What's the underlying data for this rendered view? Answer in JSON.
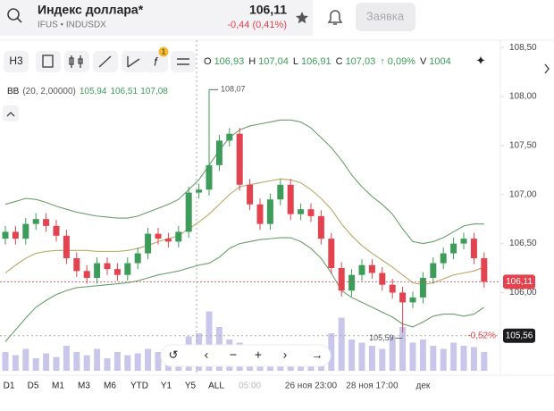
{
  "header": {
    "title": "Индекс доллара*",
    "subtitle": "IFUS • INDUSDX",
    "price": "106,11",
    "change": "-0,44 (0,41%)",
    "button": "Заявка"
  },
  "toolbar": {
    "interval": "Н3",
    "badge": "1"
  },
  "ohlc": {
    "o_label": "O",
    "o": "106,93",
    "h_label": "H",
    "h": "107,04",
    "l_label": "L",
    "l": "106,91",
    "c_label": "C",
    "c": "107,03",
    "change": "↑ 0,09%",
    "v_label": "V",
    "v": "1004"
  },
  "indicator": {
    "name": "BB",
    "params": "(20, 2,00000)",
    "lower": "105,94",
    "middle": "106,51",
    "upper": "107,08"
  },
  "periods": [
    "D1",
    "D5",
    "M1",
    "M3",
    "M6",
    "YTD",
    "Y1",
    "Y5",
    "ALL"
  ],
  "chart_data": {
    "type": "candlestick",
    "categories": [
      null,
      null,
      null,
      null,
      null,
      null,
      null,
      null,
      null,
      null,
      null,
      null,
      null,
      null,
      null,
      null,
      null,
      null,
      null,
      null,
      null,
      null,
      null,
      null,
      "05:00",
      null,
      null,
      null,
      null,
      null,
      "26 ноя 23:00",
      null,
      null,
      null,
      null,
      null,
      "28 ноя 17:00",
      null,
      null,
      null,
      null,
      "дек",
      null,
      null,
      null,
      null,
      null,
      null
    ],
    "open": [
      106.55,
      106.62,
      106.55,
      106.7,
      106.75,
      106.68,
      106.58,
      106.35,
      106.22,
      106.15,
      106.3,
      106.24,
      106.18,
      106.3,
      106.4,
      106.6,
      106.55,
      106.52,
      106.62,
      107.02,
      107.05,
      107.3,
      107.55,
      107.62,
      107.1,
      106.9,
      106.7,
      106.95,
      107.1,
      106.8,
      106.85,
      106.78,
      106.55,
      106.25,
      106.02,
      106.18,
      106.28,
      106.2,
      106.08,
      106.0,
      105.9,
      105.95,
      106.15,
      106.3,
      106.4,
      106.5,
      106.55,
      106.35
    ],
    "high": [
      106.68,
      106.68,
      106.76,
      106.81,
      106.81,
      106.74,
      106.64,
      106.41,
      106.28,
      106.36,
      106.36,
      106.3,
      106.36,
      106.46,
      106.66,
      106.66,
      106.61,
      106.68,
      107.08,
      107.11,
      108.07,
      107.61,
      107.68,
      107.68,
      107.16,
      106.96,
      107.01,
      107.16,
      107.16,
      106.91,
      106.91,
      106.84,
      106.61,
      106.31,
      106.24,
      106.34,
      106.34,
      106.26,
      106.14,
      106.06,
      106.01,
      106.21,
      106.36,
      106.46,
      106.56,
      106.61,
      106.61,
      106.41
    ],
    "low": [
      106.49,
      106.49,
      106.49,
      106.64,
      106.62,
      106.52,
      106.29,
      106.16,
      106.09,
      106.09,
      106.18,
      106.12,
      106.12,
      106.24,
      106.34,
      106.49,
      106.46,
      106.46,
      106.56,
      106.96,
      106.99,
      107.24,
      107.49,
      107.04,
      106.84,
      106.64,
      106.64,
      106.89,
      106.74,
      106.74,
      106.72,
      106.49,
      106.19,
      105.96,
      105.96,
      106.12,
      106.14,
      106.02,
      105.94,
      105.59,
      105.84,
      105.89,
      106.09,
      106.24,
      106.34,
      106.44,
      106.29,
      106.05
    ],
    "close": [
      106.62,
      106.55,
      106.7,
      106.75,
      106.68,
      106.58,
      106.35,
      106.22,
      106.15,
      106.3,
      106.24,
      106.18,
      106.3,
      106.4,
      106.6,
      106.55,
      106.52,
      106.62,
      107.02,
      107.05,
      107.3,
      107.55,
      107.62,
      107.1,
      106.9,
      106.7,
      106.95,
      107.1,
      106.8,
      106.85,
      106.78,
      106.55,
      106.25,
      106.02,
      106.18,
      106.28,
      106.2,
      106.08,
      106.0,
      105.9,
      105.95,
      106.15,
      106.3,
      106.4,
      106.5,
      106.55,
      106.35,
      106.11
    ],
    "bands": [
      {
        "color": "#6a9e6a",
        "values": [
          106.9,
          106.93,
          106.96,
          106.95,
          106.92,
          106.88,
          106.85,
          106.82,
          106.8,
          106.78,
          106.77,
          106.76,
          106.76,
          106.78,
          106.82,
          106.86,
          106.9,
          106.95,
          107.05,
          107.15,
          107.3,
          107.45,
          107.58,
          107.66,
          107.7,
          107.72,
          107.74,
          107.76,
          107.76,
          107.74,
          107.68,
          107.58,
          107.48,
          107.35,
          107.2,
          107.08,
          106.98,
          106.9,
          106.8,
          106.65,
          106.52,
          106.5,
          106.52,
          106.56,
          106.62,
          106.68,
          106.7,
          106.7
        ]
      },
      {
        "color": "#b9a866",
        "values": [
          106.2,
          106.28,
          106.35,
          106.4,
          106.42,
          106.43,
          106.43,
          106.43,
          106.43,
          106.42,
          106.42,
          106.42,
          106.43,
          106.45,
          106.48,
          106.52,
          106.55,
          106.58,
          106.65,
          106.72,
          106.8,
          106.9,
          107.0,
          107.08,
          107.1,
          107.12,
          107.14,
          107.16,
          107.15,
          107.12,
          107.05,
          106.96,
          106.85,
          106.7,
          106.58,
          106.48,
          106.4,
          106.33,
          106.26,
          106.18,
          106.1,
          106.08,
          106.1,
          106.14,
          106.18,
          106.2,
          106.22,
          106.26
        ]
      },
      {
        "color": "#6a9e6a",
        "values": [
          105.5,
          105.62,
          105.74,
          105.85,
          105.92,
          105.98,
          106.02,
          106.05,
          106.06,
          106.07,
          106.08,
          106.09,
          106.1,
          106.12,
          106.15,
          106.18,
          106.2,
          106.22,
          106.25,
          106.28,
          106.3,
          106.36,
          106.45,
          106.5,
          106.52,
          106.54,
          106.55,
          106.56,
          106.56,
          106.52,
          106.45,
          106.35,
          106.2,
          106.02,
          105.95,
          105.9,
          105.85,
          105.8,
          105.75,
          105.68,
          105.65,
          105.7,
          105.76,
          105.78,
          105.78,
          105.76,
          105.78,
          105.85
        ]
      }
    ],
    "volume": [
      30,
      25,
      35,
      20,
      28,
      22,
      40,
      30,
      25,
      35,
      20,
      30,
      25,
      28,
      35,
      30,
      25,
      40,
      55,
      60,
      95,
      70,
      50,
      45,
      40,
      35,
      30,
      38,
      42,
      30,
      35,
      40,
      60,
      85,
      50,
      45,
      40,
      35,
      55,
      70,
      45,
      50,
      40,
      35,
      45,
      40,
      38,
      30
    ],
    "vlim": [
      0,
      100
    ],
    "ylim": [
      105.43,
      108.62
    ],
    "yticks": [
      {
        "value": 108.5,
        "label": "108,50"
      },
      {
        "value": 108,
        "label": "108,00"
      },
      {
        "value": 107.5,
        "label": "107,50"
      },
      {
        "value": 107,
        "label": "107,00"
      },
      {
        "value": 106.5,
        "label": "106,50"
      },
      {
        "value": 106,
        "label": "106,00"
      }
    ],
    "annotations": [
      {
        "value": 108.07,
        "label": "108,07"
      },
      {
        "value": 105.59,
        "label": "105,59"
      }
    ],
    "last_price": {
      "value": 106.11,
      "label": "106,11"
    },
    "crosshair": {
      "value": 105.56,
      "label": "105,56",
      "change": "-0,52%"
    },
    "up_color": "#3d9c5a",
    "down_color": "#e2434f",
    "volume_color": "#c9c6ec"
  }
}
